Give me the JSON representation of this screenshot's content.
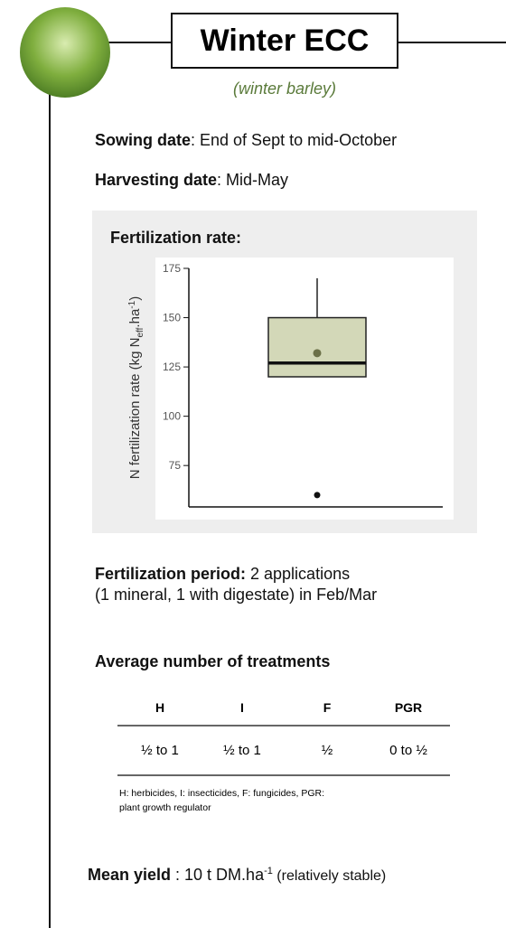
{
  "header": {
    "title": "Winter ECC",
    "subtitle": "(winter barley)"
  },
  "sowing": {
    "label": "Sowing date",
    "text": ": End of Sept to mid-October"
  },
  "harvesting": {
    "label": "Harvesting date",
    "text": ": Mid-May"
  },
  "fertilization_rate": {
    "title": "Fertilization rate:"
  },
  "chart_data": {
    "type": "box",
    "ylabel": [
      "N fertilization rate (kg N",
      "eff",
      ".ha",
      "-1",
      ")"
    ],
    "ylim": [
      54,
      175
    ],
    "yticks": [
      75,
      100,
      125,
      150,
      175
    ],
    "q1": 120,
    "median": 127,
    "q3": 150,
    "whisker_high": 170,
    "mean": 132,
    "outliers": [
      60
    ],
    "color": "#d3d8b8",
    "mean_color": "#6b7048"
  },
  "fertilization_period": {
    "label": "Fertilization period:",
    "lines": [
      " 2 applications",
      "(1 mineral, 1 with digestate) in Feb/Mar"
    ]
  },
  "treatments": {
    "title": "Average number of treatments",
    "headers": [
      "H",
      "I",
      "F",
      "PGR"
    ],
    "rows": [
      [
        "½ to 1",
        "½ to 1",
        "½",
        "0 to ½"
      ]
    ],
    "footnote": [
      "H: herbicides, I: insecticides, F: fungicides, PGR:",
      "plant growth regulator"
    ]
  },
  "yield": {
    "label": "Mean yield",
    "text": " : 10 t DM.ha",
    "sup": "-1",
    "note": " (relatively stable)"
  }
}
